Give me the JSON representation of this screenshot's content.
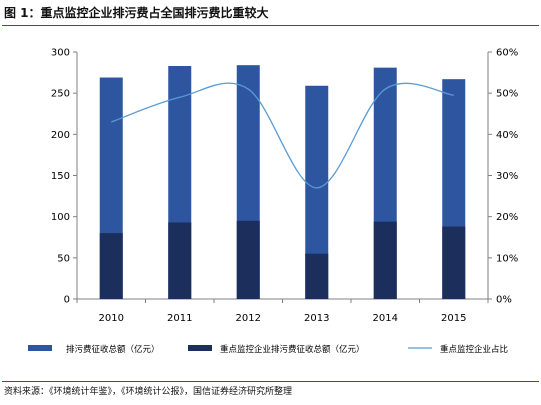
{
  "title": "图 1：重点监控企业排污费占全国排污费比重较大",
  "source": "资料来源：《环境统计年鉴》，《环境统计公报》，国信证券经济研究所整理",
  "colors": {
    "total_bar": "#2E56A0",
    "key_bar": "#1C2F5C",
    "line": "#5A9AD5",
    "axis": "#808080",
    "rule": "#7F3F1F"
  },
  "chart_data": {
    "type": "bar",
    "categories": [
      "2010",
      "2011",
      "2012",
      "2013",
      "2014",
      "2015"
    ],
    "series": [
      {
        "name": "排污费征收总额（亿元）",
        "type": "bar",
        "axis": "left",
        "values": [
          269,
          283,
          284,
          259,
          281,
          267
        ]
      },
      {
        "name": "重点监控企业排污费征收总额（亿元）",
        "type": "bar",
        "axis": "left",
        "values": [
          80,
          93,
          95,
          55,
          94,
          88
        ]
      },
      {
        "name": "重点监控企业占比",
        "type": "line",
        "axis": "right",
        "values": [
          43,
          49,
          51,
          27,
          51,
          49.5
        ]
      }
    ],
    "left_axis": {
      "min": 0,
      "max": 300,
      "ticks": [
        "0",
        "50",
        "100",
        "150",
        "200",
        "250",
        "300"
      ]
    },
    "right_axis": {
      "min": 0,
      "max": 60,
      "ticks": [
        "0%",
        "10%",
        "20%",
        "30%",
        "40%",
        "50%",
        "60%"
      ]
    },
    "grid": false,
    "legend_position": "bottom"
  }
}
